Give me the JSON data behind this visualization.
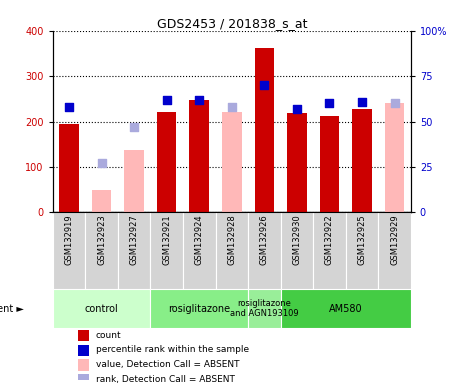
{
  "title": "GDS2453 / 201838_s_at",
  "samples": [
    "GSM132919",
    "GSM132923",
    "GSM132927",
    "GSM132921",
    "GSM132924",
    "GSM132928",
    "GSM132926",
    "GSM132930",
    "GSM132922",
    "GSM132925",
    "GSM132929"
  ],
  "count_values": [
    195,
    null,
    null,
    222,
    247,
    null,
    363,
    218,
    213,
    228,
    null
  ],
  "absent_value_bars": [
    null,
    50,
    138,
    null,
    null,
    220,
    null,
    null,
    null,
    null,
    240
  ],
  "percentile_rank": [
    58,
    null,
    null,
    62,
    62,
    null,
    70,
    57,
    60,
    61,
    null
  ],
  "absent_rank_bars": [
    null,
    27,
    47,
    null,
    null,
    58,
    null,
    null,
    null,
    null,
    60
  ],
  "left_ylim": [
    0,
    400
  ],
  "right_ylim": [
    0,
    100
  ],
  "left_yticks": [
    0,
    100,
    200,
    300,
    400
  ],
  "right_yticks": [
    0,
    25,
    50,
    75,
    100
  ],
  "right_yticklabels": [
    "0",
    "25",
    "50",
    "75",
    "100%"
  ],
  "bar_color_present": "#cc0000",
  "bar_color_absent_value": "#ffb8b8",
  "dot_color_present": "#0000cc",
  "dot_color_absent_rank": "#aaaadd",
  "agent_groups": [
    {
      "label": "control",
      "start": 0,
      "end": 3,
      "color": "#ccffcc"
    },
    {
      "label": "rosiglitazone",
      "start": 3,
      "end": 6,
      "color": "#88ee88"
    },
    {
      "label": "rosiglitazone\nand AGN193109",
      "start": 6,
      "end": 7,
      "color": "#99ee99"
    },
    {
      "label": "AM580",
      "start": 7,
      "end": 11,
      "color": "#44cc44"
    }
  ],
  "bar_width": 0.6,
  "dot_size": 28,
  "ylabel_left_color": "#cc0000",
  "ylabel_right_color": "#0000cc",
  "legend_items": [
    {
      "label": "count",
      "color": "#cc0000"
    },
    {
      "label": "percentile rank within the sample",
      "color": "#0000cc"
    },
    {
      "label": "value, Detection Call = ABSENT",
      "color": "#ffb8b8"
    },
    {
      "label": "rank, Detection Call = ABSENT",
      "color": "#aaaadd"
    }
  ]
}
